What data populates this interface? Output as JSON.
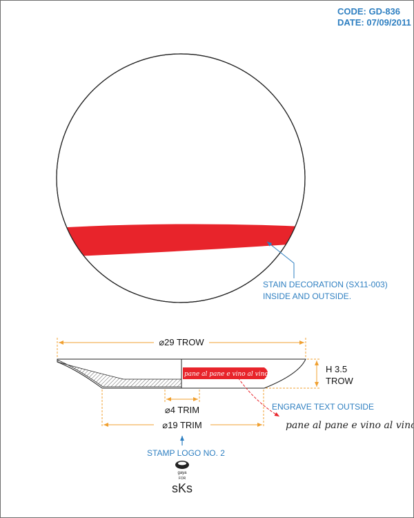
{
  "title_block": {
    "code": "CODE: GD-836",
    "date": "DATE: 07/09/2011"
  },
  "callouts": {
    "stain_line1": "STAIN DECORATION (SX11-003)",
    "stain_line2": "INSIDE AND OUTSIDE.",
    "engrave": "ENGRAVE TEXT OUTSIDE",
    "engrave_text": "pane al pane e vino al vino....",
    "band_text": "pane al pane e vino al vino....",
    "stamp": "STAMP LOGO NO. 2"
  },
  "dimensions": {
    "diameter_top": "⌀29 TROW",
    "height_line1": "H 3.5",
    "height_line2": "TROW",
    "diameter_trim_small": "⌀4 TRIM",
    "diameter_trim_base": "⌀19 TRIM"
  },
  "stamp_logo": {
    "brand": "gaya",
    "for": "FOR",
    "mark": "sKs"
  },
  "colors": {
    "stain_red": "#e8242b",
    "dimension_orange": "#f0a030",
    "callout_blue": "#2e7fc1",
    "outline": "#222222"
  }
}
